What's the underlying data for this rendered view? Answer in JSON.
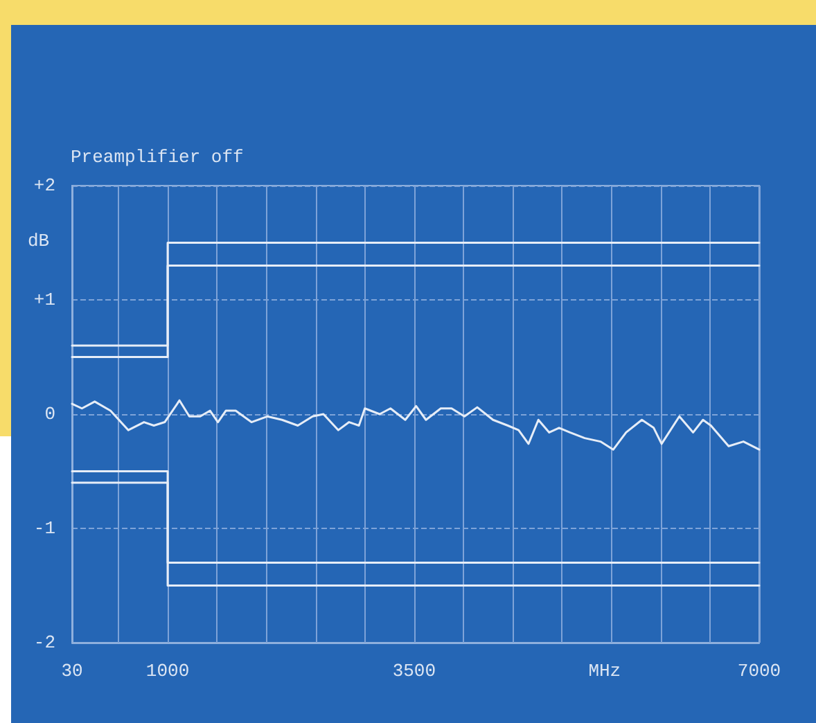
{
  "chart_data": {
    "type": "line",
    "title": "Preamplifier off",
    "xlabel": "MHz",
    "ylabel": "dB",
    "xlim": [
      30,
      7000
    ],
    "ylim": [
      -2,
      2
    ],
    "xticks": [
      30,
      {
        "value": 500,
        "label": null
      },
      1000,
      {
        "value": 1500,
        "label": null
      },
      {
        "value": 2000,
        "label": null
      },
      {
        "value": 2500,
        "label": null
      },
      {
        "value": 3000,
        "label": null
      },
      3500,
      {
        "value": 4000,
        "label": null
      },
      {
        "value": 4500,
        "label": null
      },
      {
        "value": 5000,
        "label": null
      },
      {
        "value": 5500,
        "label": null
      },
      {
        "value": 6000,
        "label": null
      },
      {
        "value": 6500,
        "label": null
      },
      7000
    ],
    "yticks": [
      -2,
      -1,
      0,
      {
        "value": 1,
        "label": "+1"
      },
      {
        "value": 2,
        "label": "+2"
      }
    ],
    "grid": true,
    "marker": "none",
    "line_style": "solid",
    "series": [
      {
        "type": "step",
        "color": "#e6edf7",
        "x": [
          30,
          1000,
          7000
        ],
        "values": [
          0.6,
          1.5,
          1.5
        ]
      },
      {
        "type": "step",
        "color": "#e6edf7",
        "x": [
          30,
          1000,
          7000
        ],
        "values": [
          0.5,
          1.3,
          1.3
        ]
      },
      {
        "type": "step",
        "color": "#e6edf7",
        "x": [
          30,
          1000,
          7000
        ],
        "values": [
          -0.5,
          -1.3,
          -1.3
        ]
      },
      {
        "type": "step",
        "color": "#e6edf7",
        "x": [
          30,
          1000,
          7000
        ],
        "values": [
          -0.6,
          -1.5,
          -1.5
        ]
      },
      {
        "color": "#e6edf7",
        "x": [
          30,
          130,
          260,
          420,
          600,
          760,
          860,
          970,
          1120,
          1220,
          1330,
          1430,
          1510,
          1590,
          1690,
          1850,
          2010,
          2160,
          2320,
          2470,
          2580,
          2730,
          2840,
          2940,
          3000,
          3150,
          3260,
          3410,
          3520,
          3620,
          3770,
          3880,
          4010,
          4140,
          4300,
          4450,
          4560,
          4660,
          4760,
          4870,
          4970,
          5080,
          5230,
          5390,
          5520,
          5650,
          5810,
          5930,
          6010,
          6190,
          6330,
          6430,
          6510,
          6690,
          6840,
          7000
        ],
        "values": [
          0.09,
          0.05,
          0.11,
          0.03,
          -0.14,
          -0.07,
          -0.1,
          -0.07,
          0.12,
          -0.02,
          -0.02,
          0.03,
          -0.07,
          0.03,
          0.03,
          -0.07,
          -0.02,
          -0.05,
          -0.1,
          -0.02,
          0.0,
          -0.14,
          -0.07,
          -0.1,
          0.05,
          0.0,
          0.05,
          -0.05,
          0.07,
          -0.05,
          0.05,
          0.05,
          -0.02,
          0.06,
          -0.05,
          -0.1,
          -0.14,
          -0.26,
          -0.05,
          -0.16,
          -0.12,
          -0.16,
          -0.21,
          -0.24,
          -0.31,
          -0.16,
          -0.05,
          -0.12,
          -0.26,
          -0.02,
          -0.16,
          -0.05,
          -0.1,
          -0.28,
          -0.24,
          -0.31
        ]
      }
    ]
  }
}
